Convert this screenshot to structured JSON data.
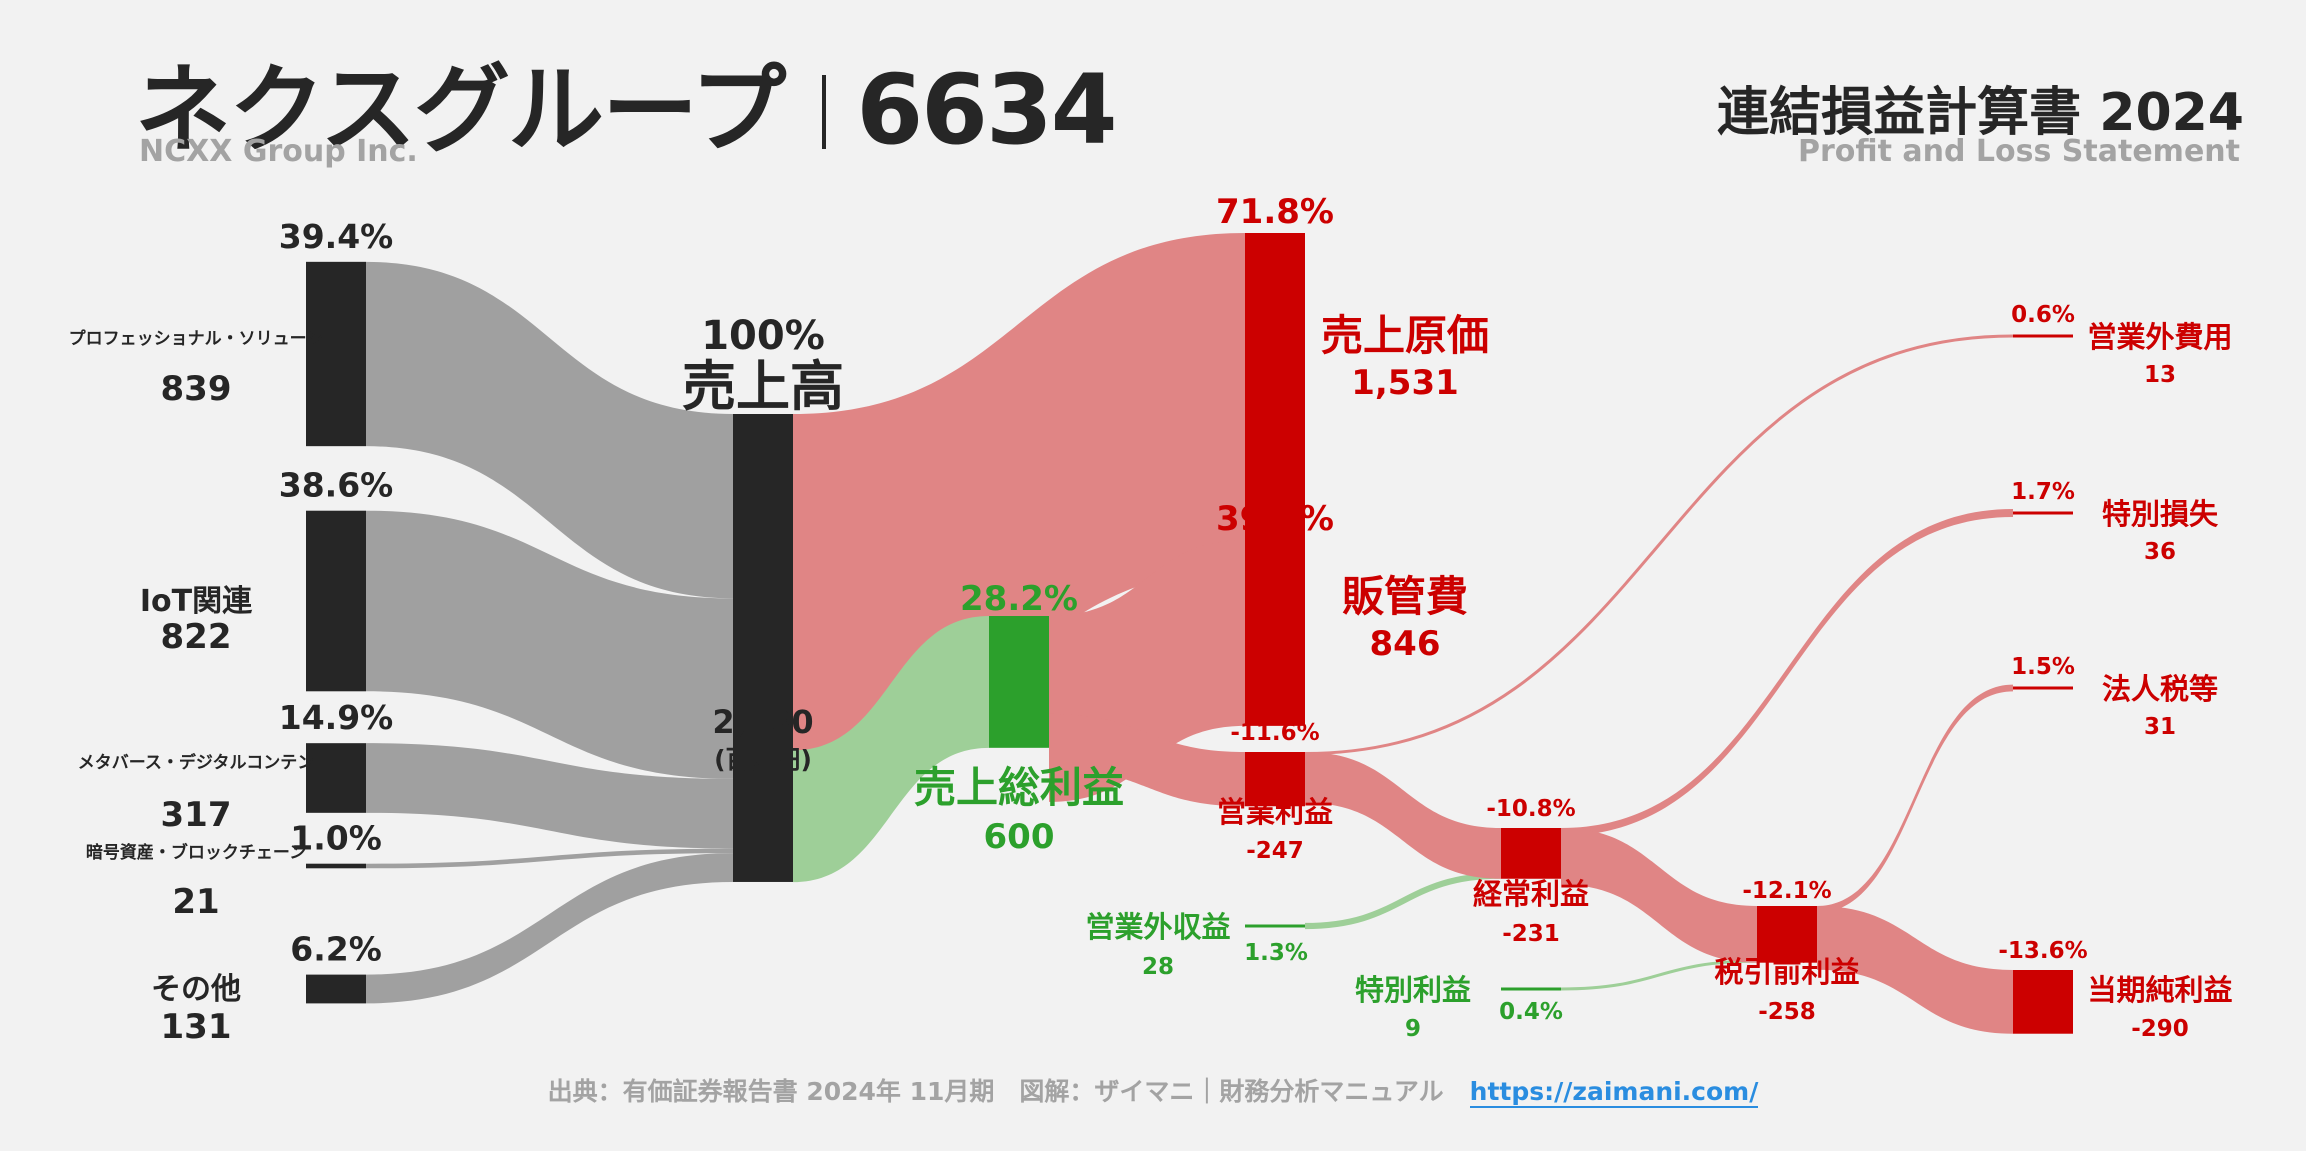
{
  "header": {
    "company_jp": "ネクスグループ",
    "ticker": "6634",
    "company_en": "NCXX Group Inc.",
    "report_title": "連結損益計算書 2024",
    "report_subtitle": "Profit and Loss Statement"
  },
  "footer": {
    "source": "出典：有価証券報告書 2024年 11月期　図解：ザイマニ｜財務分析マニュアル",
    "link": "https://zaimani.com/"
  },
  "colors": {
    "background": "#f2f2f2",
    "revenue_node": "#262626",
    "revenue_flow": "#a0a0a0",
    "cost_node": "#cc0000",
    "cost_flow": "#e08585",
    "cost_text": "#cc0000",
    "profit_node": "#2ca02c",
    "profit_flow": "#9ecf98",
    "profit_text": "#2ca02c",
    "dark_text": "#262626"
  },
  "chart_data": {
    "type": "sankey",
    "unit": "(百万円)",
    "nodes": [
      {
        "id": "seg_pro",
        "label": "プロフェッショナル・ソリューシ",
        "value": 839,
        "pct": "39.4%",
        "kind": "segment",
        "value_text": "839"
      },
      {
        "id": "seg_iot",
        "label": "IoT関連",
        "value": 822,
        "pct": "38.6%",
        "kind": "segment",
        "value_text": "822"
      },
      {
        "id": "seg_meta",
        "label": "メタバース・デジタルコンテン",
        "value": 317,
        "pct": "14.9%",
        "kind": "segment",
        "value_text": "317"
      },
      {
        "id": "seg_crypto",
        "label": "暗号資産・ブロックチェーン",
        "value": 21,
        "pct": "1.0%",
        "kind": "segment",
        "value_text": "21"
      },
      {
        "id": "seg_other",
        "label": "その他",
        "value": 131,
        "pct": "6.2%",
        "kind": "segment",
        "value_text": "131"
      },
      {
        "id": "revenue",
        "label": "売上高",
        "value": 2130,
        "pct": "100%",
        "kind": "total",
        "value_text": "2,130"
      },
      {
        "id": "cogs",
        "label": "売上原価",
        "value": 1531,
        "pct": "71.8%",
        "kind": "cost",
        "value_text": "1,531"
      },
      {
        "id": "gross",
        "label": "売上総利益",
        "value": 600,
        "pct": "28.2%",
        "kind": "profit",
        "value_text": "600"
      },
      {
        "id": "sga",
        "label": "販管費",
        "value": 846,
        "pct": "39.7%",
        "kind": "cost",
        "value_text": "846"
      },
      {
        "id": "op",
        "label": "営業利益",
        "value": -247,
        "pct": "-11.6%",
        "kind": "loss",
        "value_text": "-247"
      },
      {
        "id": "nonop_inc",
        "label": "営業外収益",
        "value": 28,
        "pct": "1.3%",
        "kind": "income",
        "value_text": "28"
      },
      {
        "id": "nonop_exp",
        "label": "営業外費用",
        "value": 13,
        "pct": "0.6%",
        "kind": "cost",
        "value_text": "13"
      },
      {
        "id": "ordinary",
        "label": "経常利益",
        "value": -231,
        "pct": "-10.8%",
        "kind": "loss",
        "value_text": "-231"
      },
      {
        "id": "sp_gain",
        "label": "特別利益",
        "value": 9,
        "pct": "0.4%",
        "kind": "income",
        "value_text": "9"
      },
      {
        "id": "sp_loss",
        "label": "特別損失",
        "value": 36,
        "pct": "1.7%",
        "kind": "cost",
        "value_text": "36"
      },
      {
        "id": "pretax",
        "label": "税引前利益",
        "value": -258,
        "pct": "-12.1%",
        "kind": "loss",
        "value_text": "-258"
      },
      {
        "id": "tax",
        "label": "法人税等",
        "value": 31,
        "pct": "1.5%",
        "kind": "cost",
        "value_text": "31"
      },
      {
        "id": "net",
        "label": "当期純利益",
        "value": -290,
        "pct": "-13.6%",
        "kind": "loss",
        "value_text": "-290"
      }
    ],
    "links": [
      {
        "from": "seg_pro",
        "to": "revenue",
        "value": 839
      },
      {
        "from": "seg_iot",
        "to": "revenue",
        "value": 822
      },
      {
        "from": "seg_meta",
        "to": "revenue",
        "value": 317
      },
      {
        "from": "seg_crypto",
        "to": "revenue",
        "value": 21
      },
      {
        "from": "seg_other",
        "to": "revenue",
        "value": 131
      },
      {
        "from": "revenue",
        "to": "cogs",
        "value": 1531
      },
      {
        "from": "revenue",
        "to": "gross",
        "value": 600
      },
      {
        "from": "gross",
        "to": "sga",
        "value": 846
      },
      {
        "from": "gross",
        "to": "op",
        "value": 247
      },
      {
        "from": "op",
        "to": "nonop_exp",
        "value": 13
      },
      {
        "from": "nonop_inc",
        "to": "ordinary",
        "value": 28
      },
      {
        "from": "op",
        "to": "ordinary",
        "value": 231
      },
      {
        "from": "ordinary",
        "to": "sp_loss",
        "value": 36
      },
      {
        "from": "sp_gain",
        "to": "pretax",
        "value": 9
      },
      {
        "from": "ordinary",
        "to": "pretax",
        "value": 258
      },
      {
        "from": "pretax",
        "to": "tax",
        "value": 31
      },
      {
        "from": "pretax",
        "to": "net",
        "value": 290
      }
    ]
  }
}
